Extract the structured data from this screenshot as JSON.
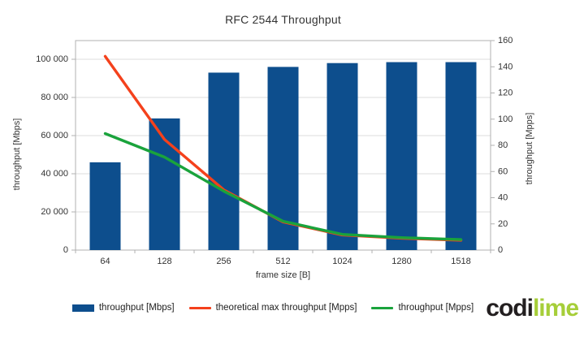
{
  "title": "RFC 2544 Throughput",
  "chart_data": {
    "type": "bar",
    "subtype": "combo-bar-line-dual-axis",
    "title": "RFC 2544 Throughput",
    "categories": [
      "64",
      "128",
      "256",
      "512",
      "1024",
      "1280",
      "1518"
    ],
    "xlabel": "frame size [B]",
    "ylabel_left": "throughput [Mbps]",
    "ylabel_right": "throughput [Mpps]",
    "ylim_left": [
      0,
      110000
    ],
    "ylim_right": [
      0,
      160
    ],
    "left_ticks": [
      0,
      20000,
      40000,
      60000,
      80000,
      100000
    ],
    "right_ticks": [
      0,
      20,
      40,
      60,
      80,
      100,
      120,
      140,
      160
    ],
    "grid": true,
    "legend_position": "bottom",
    "series": [
      {
        "name": "throughput [Mbps]",
        "type": "bar",
        "axis": "left",
        "color": "#0d4e8d",
        "values": [
          46000,
          69000,
          93000,
          96000,
          98000,
          98500,
          98500
        ]
      },
      {
        "name": "theoretical max throughput [Mpps]",
        "type": "line",
        "axis": "right",
        "color": "#f4411c",
        "values": [
          148,
          84.5,
          46,
          21.5,
          11.5,
          9,
          7.5
        ]
      },
      {
        "name": "throughput [Mpps]",
        "type": "line",
        "axis": "right",
        "color": "#1aa33c",
        "values": [
          89,
          71,
          45,
          22,
          12,
          9.5,
          8
        ]
      }
    ]
  },
  "colors": {
    "grid": "#dcdcdc",
    "frame": "#b0b0b0",
    "tick_text": "#333333"
  },
  "logo": {
    "part1": "codi",
    "part2": "lime",
    "color1": "#231f20",
    "color2": "#a6ce39"
  }
}
